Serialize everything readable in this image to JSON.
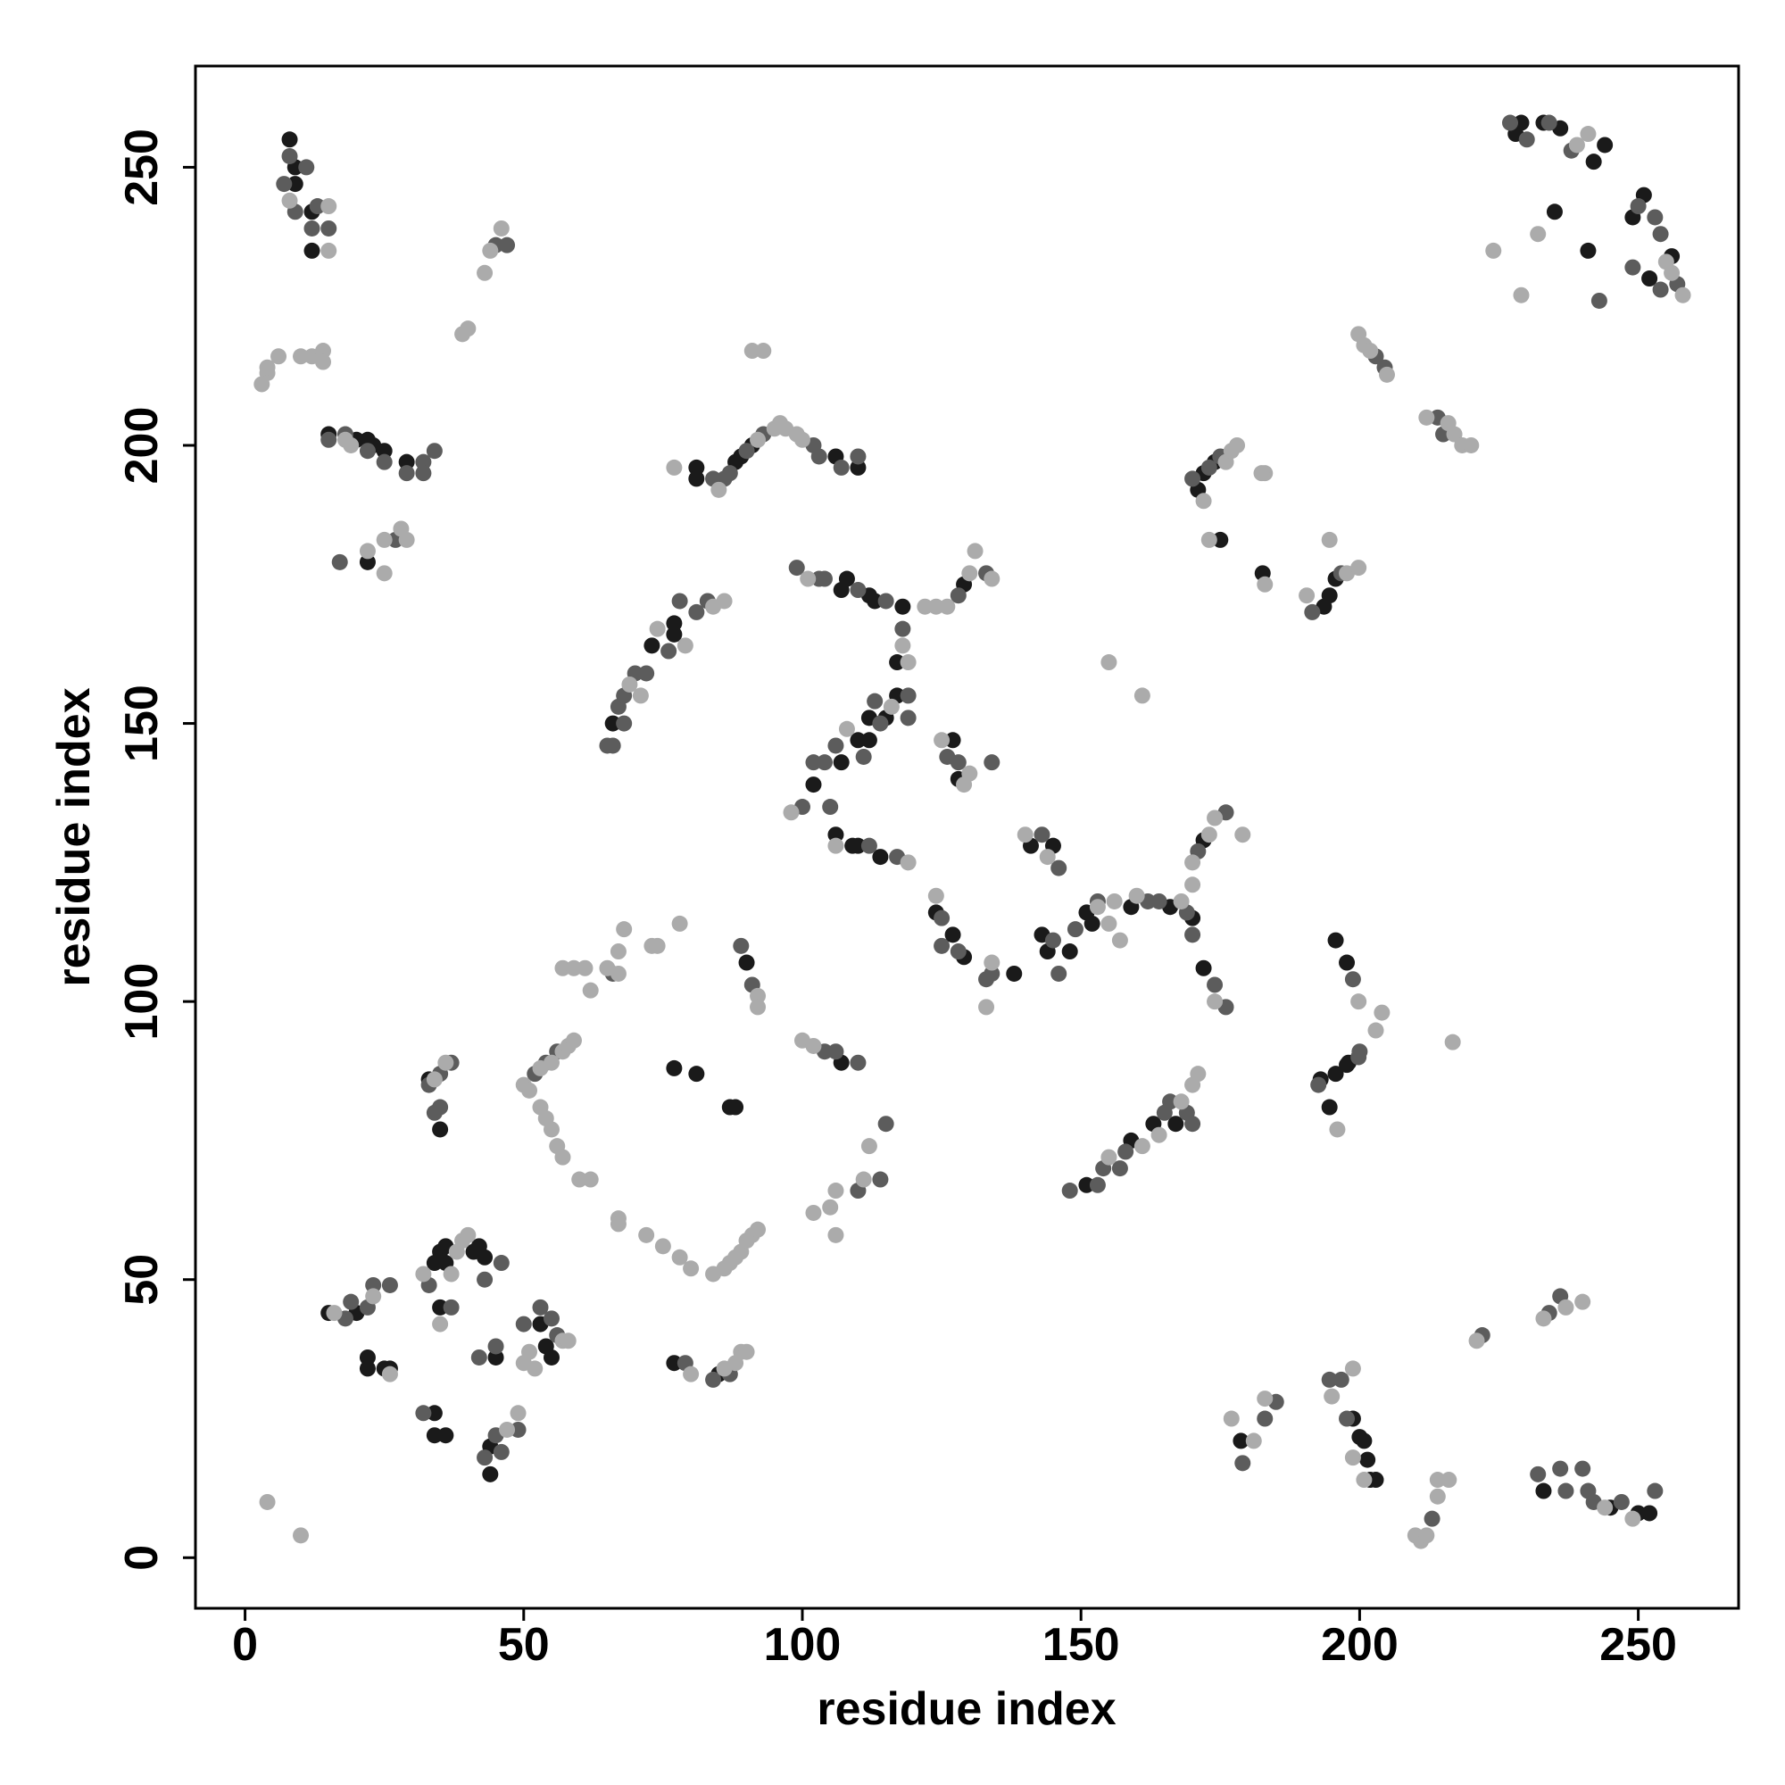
{
  "chart_data": {
    "type": "scatter",
    "xlabel": "residue index",
    "ylabel": "residue index",
    "xlim": [
      -8.9,
      268
    ],
    "ylim": [
      -9.1,
      268.2
    ],
    "xticks": [
      0,
      50,
      100,
      150,
      200,
      250
    ],
    "yticks": [
      0,
      50,
      100,
      150,
      200,
      250
    ],
    "grid": false,
    "series": [
      {
        "color": "#1a1a1a",
        "x": [
          8,
          9,
          9,
          12,
          12,
          15,
          20,
          22,
          23,
          25,
          29,
          22,
          15,
          20,
          22,
          22,
          25,
          26,
          34,
          35,
          36,
          36,
          41,
          42,
          43,
          35,
          34,
          34,
          36,
          45,
          44,
          44,
          53,
          54,
          55,
          33,
          35,
          77,
          85,
          77,
          81,
          87,
          88,
          90,
          107,
          81,
          81,
          88,
          89,
          91,
          106,
          110,
          66,
          73,
          77,
          77,
          107,
          108,
          112,
          113,
          118,
          117,
          129,
          102,
          106,
          107,
          110,
          112,
          112,
          115,
          117,
          109,
          110,
          114,
          127,
          128,
          124,
          127,
          129,
          138,
          141,
          145,
          143,
          144,
          148,
          151,
          152,
          159,
          166,
          170,
          172,
          172,
          151,
          159,
          163,
          167,
          171,
          172,
          174,
          175,
          194.6,
          195.7,
          197.7,
          195.7,
          197.7,
          193,
          198,
          198.8,
          200,
          200.8,
          201.4,
          201.9,
          202.9,
          178.7,
          193.6,
          194.6,
          195.7,
          182.6,
          228,
          229,
          233,
          236,
          242,
          244,
          235,
          241,
          249,
          251,
          256,
          252,
          233,
          245,
          250,
          252
        ],
        "values": [
          255,
          250,
          247,
          242,
          235,
          202,
          201,
          201,
          200,
          199,
          197,
          179,
          44,
          44,
          36,
          34,
          34,
          34,
          53,
          55,
          56,
          53,
          55,
          56,
          54,
          45,
          26,
          22,
          22,
          36,
          15,
          20,
          42,
          38,
          36,
          86,
          77,
          35,
          33,
          88,
          87,
          81,
          81,
          107,
          89,
          196,
          194,
          197,
          198,
          200,
          198,
          196,
          150,
          164,
          166,
          168,
          174,
          176,
          173,
          172,
          171,
          161,
          175,
          139,
          130,
          143,
          147,
          147,
          151,
          151,
          155,
          128,
          128,
          126,
          147,
          140,
          116,
          112,
          108,
          105,
          128,
          128,
          112,
          109,
          109,
          116,
          114,
          117,
          117,
          115,
          106,
          129,
          67,
          75,
          78,
          78,
          192,
          195,
          197,
          183,
          81,
          87,
          88.6,
          111,
          107,
          86,
          89,
          25,
          21.7,
          21,
          17.6,
          14,
          14,
          21,
          171,
          173,
          176,
          177,
          256,
          258,
          258,
          257,
          251,
          254,
          242,
          235,
          241,
          245,
          234,
          230,
          12,
          9,
          8,
          8
        ]
      },
      {
        "color": "#5c5c5c",
        "x": [
          8,
          7,
          9,
          11,
          12,
          13,
          15,
          15,
          18,
          22,
          25,
          29,
          32,
          32,
          34,
          17,
          27,
          45,
          47,
          18,
          19,
          22,
          23,
          26,
          33,
          43,
          46,
          37,
          32,
          42,
          45,
          43,
          45,
          46,
          49,
          50,
          53,
          56,
          55,
          33,
          35,
          37,
          34,
          35,
          52,
          54,
          56,
          66,
          79,
          84,
          87,
          89,
          91,
          104,
          106,
          110,
          110,
          114,
          115,
          84,
          86,
          87,
          90,
          93,
          102,
          103,
          107,
          110,
          65,
          66,
          67,
          68,
          68,
          70,
          72,
          76,
          78,
          81,
          83,
          99,
          103,
          104,
          110,
          115,
          118,
          119,
          119,
          128,
          133,
          100,
          102,
          104,
          105,
          106,
          111,
          113,
          114,
          112,
          117,
          126,
          128,
          134,
          125,
          125,
          128,
          133,
          134,
          143,
          146,
          145,
          146,
          149,
          153,
          162,
          164,
          169,
          170,
          174,
          176,
          171,
          176,
          148,
          153,
          154,
          157,
          158,
          165,
          166,
          169,
          170,
          170,
          173,
          175,
          192.6,
          199.8,
          200,
          198.8,
          194.6,
          196.7,
          197.7,
          179,
          183,
          185,
          191.5,
          196.7,
          202.9,
          204.5,
          214,
          215,
          227,
          230,
          234,
          238,
          243,
          250,
          253,
          254,
          257,
          249,
          254,
          222,
          234,
          236,
          232,
          236,
          237,
          240,
          241,
          242,
          247,
          253,
          213
        ],
        "values": [
          252,
          247,
          242,
          250,
          239,
          243,
          239,
          201,
          202,
          199,
          197,
          195,
          197,
          195,
          199,
          179,
          183,
          236,
          236,
          43,
          46,
          45,
          49,
          49,
          49,
          50,
          53,
          45,
          26,
          36,
          38,
          18,
          22,
          19,
          23,
          42,
          45,
          40,
          43,
          85,
          87,
          89,
          80,
          81,
          87,
          89,
          91,
          105,
          35,
          32,
          33,
          110,
          103,
          91,
          91,
          89,
          66,
          68,
          78,
          194,
          194,
          195,
          199,
          202,
          200,
          198,
          196,
          198,
          146,
          146,
          153,
          150,
          155,
          159,
          159,
          163,
          172,
          170,
          172,
          178,
          176,
          176,
          174,
          172,
          167,
          155,
          151,
          173,
          177,
          135,
          143,
          143,
          135,
          146,
          144,
          154,
          150,
          128,
          126,
          144,
          143,
          143,
          115,
          110,
          109,
          104,
          105,
          130,
          124,
          111,
          105,
          113,
          118,
          118,
          118,
          116,
          112,
          103,
          99,
          127,
          134,
          66,
          67,
          70,
          70,
          73,
          80,
          82,
          80,
          78,
          194,
          196,
          198,
          85,
          90,
          91,
          104,
          32,
          32,
          25,
          17,
          25,
          28,
          170,
          177,
          216,
          214,
          205,
          202,
          258,
          255,
          258,
          253,
          226,
          243,
          241,
          238,
          229,
          232,
          228,
          40,
          44,
          47,
          15,
          16,
          12,
          16,
          12,
          10,
          10,
          12,
          7
        ]
      },
      {
        "color": "#ababab",
        "x": [
          8,
          15,
          15,
          4,
          3,
          4,
          6,
          10,
          12,
          14,
          14,
          18,
          19,
          22,
          25,
          28,
          29,
          25,
          39,
          40,
          43,
          44,
          46,
          16,
          23,
          26,
          32,
          37,
          38,
          39,
          40,
          35,
          47,
          49,
          50,
          51,
          52,
          57,
          58,
          34,
          36,
          50,
          51,
          53,
          55,
          57,
          58,
          59,
          53,
          54,
          55,
          56,
          57,
          60,
          62,
          57,
          59,
          61,
          62,
          65,
          67,
          67,
          68,
          73,
          74,
          78,
          67,
          67,
          72,
          75,
          78,
          80,
          84,
          86,
          87,
          88,
          89,
          90,
          91,
          92,
          80,
          86,
          88,
          89,
          90,
          92,
          92,
          100,
          102,
          102,
          105,
          106,
          106,
          111,
          112,
          77,
          85,
          92,
          95,
          96,
          97,
          99,
          100,
          91,
          93,
          69,
          71,
          74,
          79,
          84,
          86,
          98,
          101,
          118,
          119,
          122,
          124,
          126,
          130,
          131,
          134,
          106,
          108,
          116,
          119,
          125,
          129,
          130,
          124,
          133,
          134,
          140,
          144,
          153,
          155,
          156,
          157,
          155,
          161,
          160,
          168,
          174,
          170,
          170,
          173,
          174,
          179,
          155,
          161,
          164,
          168,
          170,
          171,
          176,
          177,
          178,
          172,
          173,
          183,
          202.9,
          204,
          199.8,
          196,
          216.7,
          195,
          198.8,
          198.8,
          200.8,
          177,
          181,
          183,
          197.7,
          199.8,
          194.6,
          190.5,
          183,
          182.4,
          199.8,
          200.8,
          201.9,
          204.9,
          212,
          215.9,
          217,
          218.4,
          220,
          239,
          241,
          232,
          224,
          229,
          256,
          258,
          255,
          221,
          233,
          237,
          240,
          244,
          249,
          210,
          211,
          212,
          214,
          214,
          216,
          4,
          10
        ],
        "values": [
          244,
          243,
          235,
          213,
          211,
          214,
          216,
          216,
          216,
          217,
          215,
          201,
          200,
          181,
          183,
          185,
          183,
          177,
          220,
          221,
          231,
          235,
          239,
          44,
          47,
          33,
          51,
          51,
          55,
          57,
          58,
          42,
          23,
          26,
          35,
          37,
          34,
          39,
          39,
          86,
          89,
          85,
          84,
          88,
          89,
          91,
          92,
          93,
          81,
          79,
          77,
          74,
          72,
          68,
          68,
          106,
          106,
          106,
          102,
          106,
          105,
          109,
          113,
          110,
          110,
          114,
          61,
          60,
          58,
          56,
          54,
          52,
          51,
          52,
          53,
          54,
          55,
          57,
          58,
          59,
          33,
          34,
          35,
          37,
          37,
          101,
          99,
          93,
          92,
          62,
          63,
          66,
          58,
          68,
          74,
          196,
          192,
          201,
          203,
          204,
          203,
          202,
          201,
          217,
          217,
          157,
          155,
          167,
          164,
          171,
          172,
          134,
          176,
          164,
          161,
          171,
          171,
          171,
          177,
          181,
          176,
          128,
          149,
          153,
          125,
          147,
          139,
          141,
          119,
          99,
          107,
          130,
          126,
          117,
          114,
          118,
          111,
          161,
          155,
          119,
          118,
          100,
          121,
          125,
          130,
          133,
          130,
          72,
          74,
          76,
          82,
          85,
          87,
          197,
          199,
          200,
          190,
          183,
          195,
          94.8,
          98,
          100,
          77,
          92.7,
          29,
          34,
          18,
          14,
          25,
          21,
          28.6,
          177,
          178,
          183,
          173,
          175,
          195,
          220,
          218,
          217,
          212.7,
          205,
          204,
          202,
          200,
          200,
          254,
          256,
          238,
          235,
          227,
          231,
          227,
          233,
          39,
          43,
          45,
          46,
          9,
          7,
          4,
          3,
          4,
          11,
          14,
          14,
          10,
          4
        ]
      }
    ]
  }
}
